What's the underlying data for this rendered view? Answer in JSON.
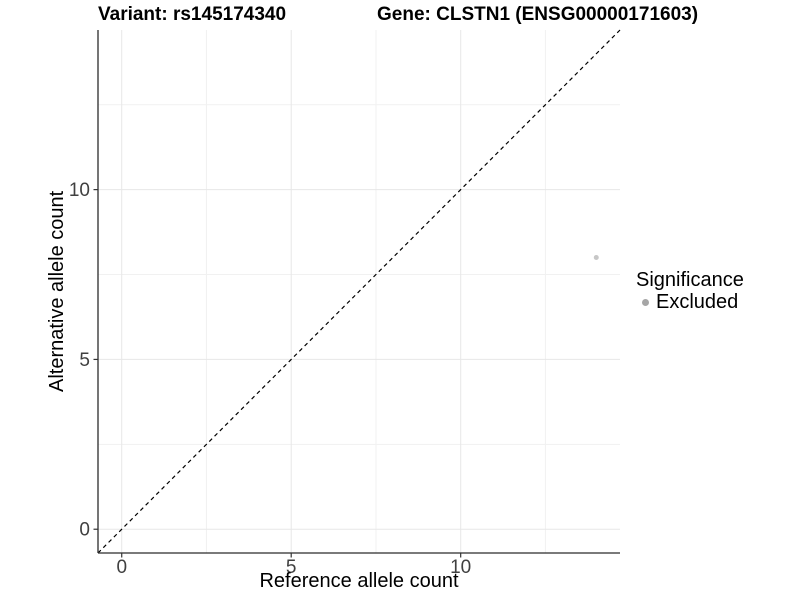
{
  "chart_data": {
    "type": "scatter",
    "titles": {
      "variant": "Variant: rs145174340",
      "gene": "Gene: CLSTN1 (ENSG00000171603)"
    },
    "xlabel": "Reference allele count",
    "ylabel": "Alternative allele count",
    "xlim": [
      -0.7,
      14.7
    ],
    "ylim": [
      -0.7,
      14.7
    ],
    "x_major_ticks": [
      0,
      5,
      10
    ],
    "y_major_ticks": [
      0,
      5,
      10
    ],
    "x_minor_ticks": [
      2.5,
      7.5,
      12.5
    ],
    "y_minor_ticks": [
      2.5,
      7.5,
      12.5
    ],
    "grid": "major and minor gridlines, no panel border",
    "identity_line": {
      "style": "dashed",
      "slope": 1,
      "intercept": 0,
      "color": "#000000"
    },
    "series": [
      {
        "name": "Excluded",
        "color": "#c7c7c7",
        "marker": "circle",
        "points": [
          {
            "x": 14,
            "y": 8
          }
        ]
      }
    ],
    "legend": {
      "position": "right",
      "title": "Significance",
      "items": [
        {
          "label": "Excluded",
          "color": "#a6a6a6",
          "marker": "circle"
        }
      ]
    },
    "colors": {
      "background": "#ffffff",
      "grid_major": "#e7e7e7",
      "grid_minor": "#f1f1f1",
      "axis_line": "#2b2b2b",
      "tick_mark": "#333333",
      "tick_label": "#404040",
      "title_text": "#000000"
    }
  }
}
